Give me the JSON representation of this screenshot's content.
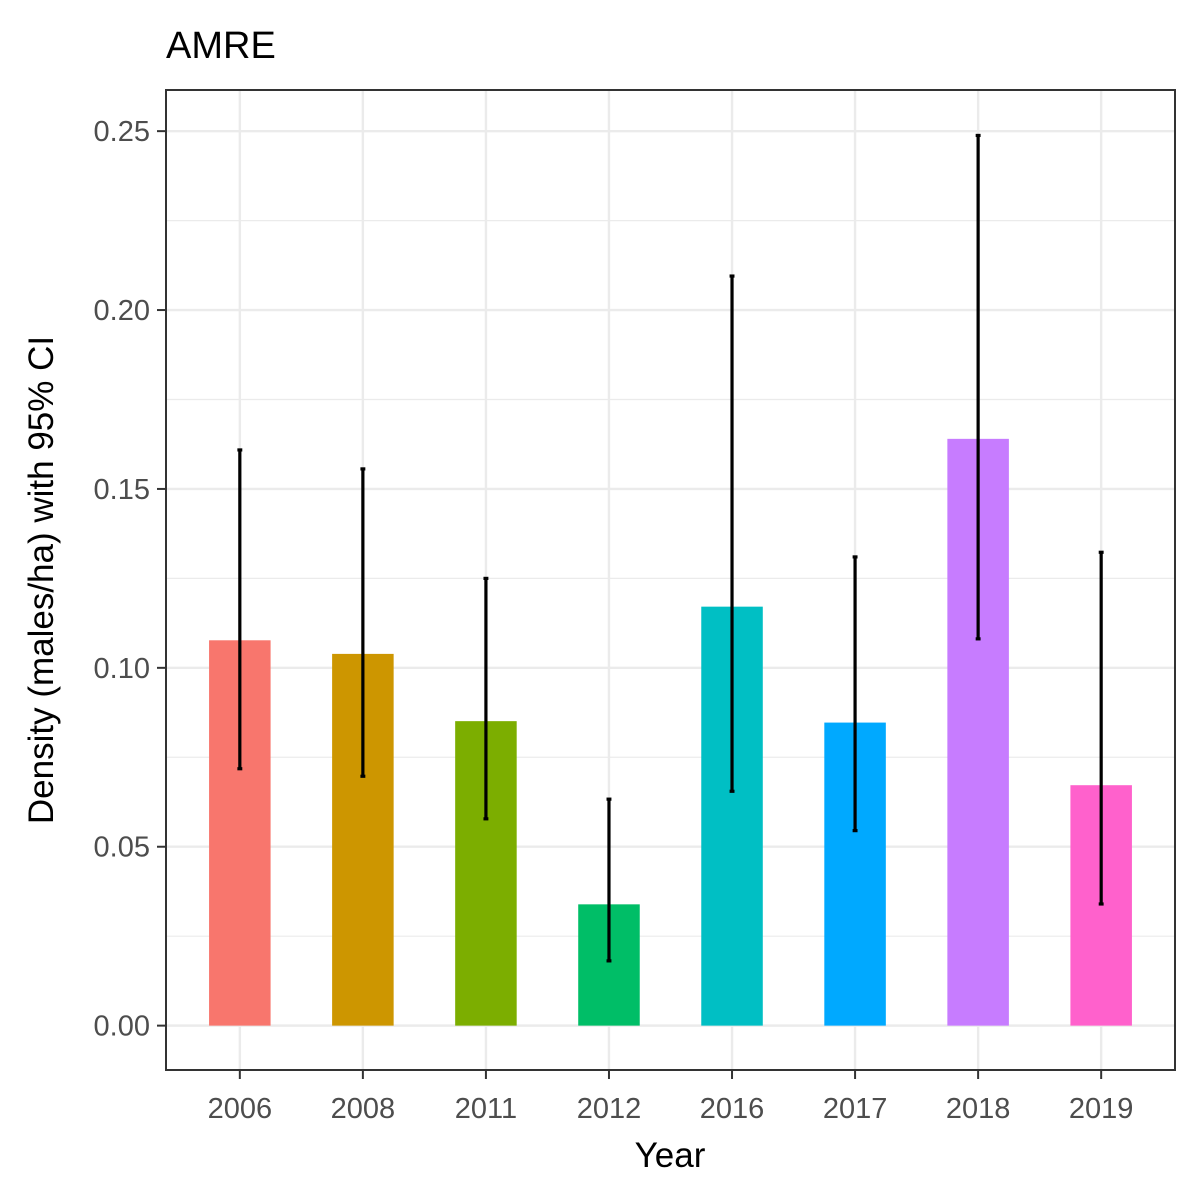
{
  "chart_data": {
    "type": "bar",
    "title": "AMRE",
    "xlabel": "Year",
    "ylabel": "Density (males/ha) with 95% CI",
    "categories": [
      "2006",
      "2008",
      "2011",
      "2012",
      "2016",
      "2017",
      "2018",
      "2019"
    ],
    "values": [
      0.1077,
      0.1039,
      0.0851,
      0.0339,
      0.1171,
      0.0847,
      0.164,
      0.0672
    ],
    "ci_lower": [
      0.0718,
      0.0697,
      0.0578,
      0.0181,
      0.0655,
      0.0545,
      0.1081,
      0.034
    ],
    "ci_upper": [
      0.1609,
      0.1556,
      0.125,
      0.0633,
      0.2095,
      0.131,
      0.2488,
      0.1323
    ],
    "colors": [
      "#F8766D",
      "#CD9600",
      "#7CAE00",
      "#00BE67",
      "#00BFC4",
      "#00A9FF",
      "#C77CFF",
      "#FF61CC"
    ],
    "ylim": [
      -0.0124,
      0.2615
    ],
    "yticks": [
      0.0,
      0.05,
      0.1,
      0.15,
      0.2,
      0.25
    ],
    "ytick_labels": [
      "0.00",
      "0.05",
      "0.10",
      "0.15",
      "0.20",
      "0.25"
    ],
    "grid": true,
    "legend": "none"
  }
}
